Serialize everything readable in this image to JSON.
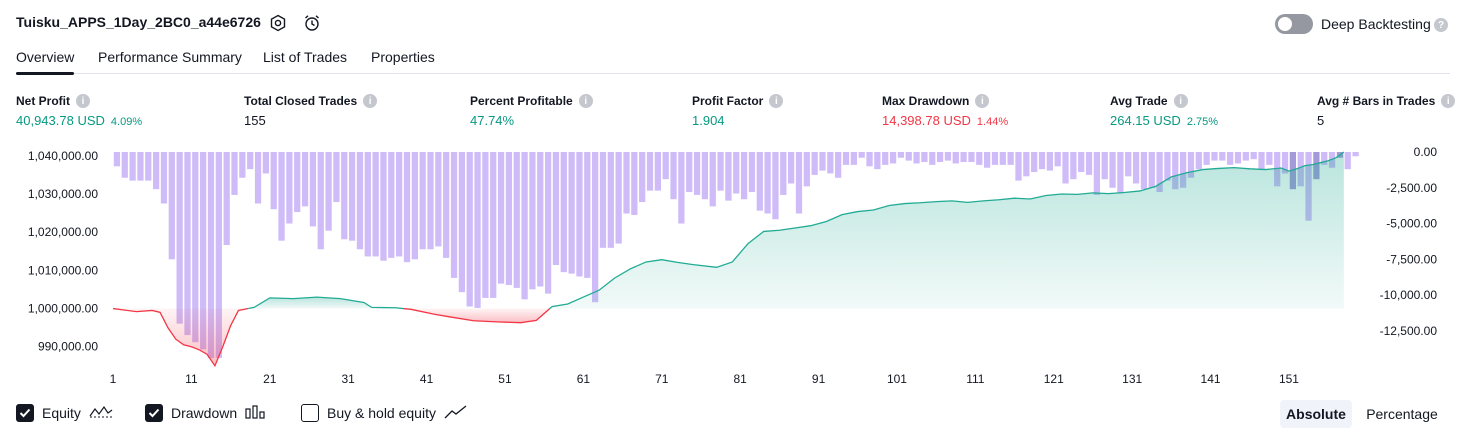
{
  "header": {
    "strategy_name": "Tuisku_APPS_1Day_2BC0_a44e6726",
    "deep_backtesting_label": "Deep Backtesting",
    "deep_backtesting_enabled": false
  },
  "tabs": [
    {
      "label": "Overview",
      "active": true
    },
    {
      "label": "Performance Summary",
      "active": false
    },
    {
      "label": "List of Trades",
      "active": false
    },
    {
      "label": "Properties",
      "active": false
    }
  ],
  "metrics": [
    {
      "label": "Net Profit",
      "value": "40,943.78 USD",
      "percent": "4.09%",
      "color": "#089981"
    },
    {
      "label": "Total Closed Trades",
      "value": "155",
      "percent": "",
      "color": "#131722"
    },
    {
      "label": "Percent Profitable",
      "value": "47.74%",
      "percent": "",
      "color": "#089981"
    },
    {
      "label": "Profit Factor",
      "value": "1.904",
      "percent": "",
      "color": "#089981"
    },
    {
      "label": "Max Drawdown",
      "value": "14,398.78 USD",
      "percent": "1.44%",
      "color": "#f23645"
    },
    {
      "label": "Avg Trade",
      "value": "264.15 USD",
      "percent": "2.75%",
      "color": "#089981"
    },
    {
      "label": "Avg # Bars in Trades",
      "value": "5",
      "percent": "",
      "color": "#131722"
    }
  ],
  "legend": {
    "equity": {
      "label": "Equity",
      "checked": true
    },
    "drawdown": {
      "label": "Drawdown",
      "checked": true
    },
    "buy_hold": {
      "label": "Buy & hold equity",
      "checked": false
    }
  },
  "view_mode": {
    "options": [
      "Absolute",
      "Percentage"
    ],
    "selected": "Absolute"
  },
  "colors": {
    "equity_line": "#22ab94",
    "loss_line": "#f23645",
    "drawdown_bar": "#c9b4f7",
    "drawdown_bar_dark": "#9a8fd6"
  },
  "chart_data": {
    "type": "area",
    "x_ticks": [
      "1",
      "11",
      "21",
      "31",
      "41",
      "51",
      "61",
      "71",
      "81",
      "91",
      "101",
      "111",
      "121",
      "131",
      "141",
      "151"
    ],
    "y_left": {
      "ticks": [
        "1,040,000.00",
        "1,030,000.00",
        "1,020,000.00",
        "1,010,000.00",
        "1,000,000.00",
        "990,000.00"
      ],
      "range": [
        986000,
        1041000
      ]
    },
    "y_right": {
      "ticks": [
        "0.00",
        "-2,500.00",
        "-5,000.00",
        "-7,500.00",
        "-10,000.00",
        "-12,500.00"
      ],
      "range": [
        -14400,
        0
      ]
    },
    "initial_capital": 1000000,
    "equity_x": [
      1,
      4,
      6,
      7,
      8,
      9,
      10,
      11,
      12,
      13,
      14,
      15,
      16,
      17,
      19,
      21,
      24,
      27,
      30,
      33,
      34,
      37,
      39,
      42,
      44,
      47,
      50,
      53,
      55,
      57,
      59,
      61,
      63,
      65,
      67,
      69,
      71,
      73,
      75,
      78,
      80,
      82,
      84,
      86,
      88,
      90,
      92,
      94,
      96,
      98,
      100,
      102,
      104,
      106,
      108,
      110,
      112,
      114,
      116,
      118,
      120,
      122,
      124,
      126,
      128,
      130,
      132,
      134,
      136,
      138,
      140,
      142,
      144,
      146,
      148,
      150,
      151,
      152,
      153,
      154,
      155,
      156,
      157,
      158
    ],
    "equity": [
      1000000,
      999200,
      999500,
      999000,
      995000,
      992000,
      990500,
      990000,
      989200,
      988000,
      985000,
      990000,
      995500,
      999500,
      1000300,
      1002800,
      1002600,
      1003000,
      1002600,
      1001600,
      1000300,
      1000200,
      999800,
      998500,
      997800,
      996800,
      996500,
      996300,
      996900,
      1000500,
      1001200,
      1003000,
      1004800,
      1008000,
      1010400,
      1012200,
      1012800,
      1012100,
      1011500,
      1010800,
      1012200,
      1017000,
      1020200,
      1020500,
      1021100,
      1021700,
      1022800,
      1024600,
      1025400,
      1025800,
      1027000,
      1027500,
      1027700,
      1028000,
      1028200,
      1027800,
      1028200,
      1028500,
      1028900,
      1028700,
      1029600,
      1030000,
      1029900,
      1030300,
      1030100,
      1030400,
      1030800,
      1032000,
      1034500,
      1035600,
      1036400,
      1036700,
      1036900,
      1036600,
      1036400,
      1036800,
      1036000,
      1036600,
      1037400,
      1037700,
      1038200,
      1038700,
      1039500,
      1041000
    ],
    "drawdown": [
      -1000,
      -1800,
      -2000,
      -2000,
      -2000,
      -2600,
      -3600,
      -7500,
      -12000,
      -12800,
      -13300,
      -13800,
      -14400,
      -14400,
      -6500,
      -3000,
      -1800,
      -1200,
      -3600,
      -1500,
      -4000,
      -6200,
      -5000,
      -4200,
      -3800,
      -5200,
      -6800,
      -5500,
      -3500,
      -6100,
      -6200,
      -6800,
      -7300,
      -7300,
      -7600,
      -7400,
      -7300,
      -7700,
      -7500,
      -6800,
      -6800,
      -6600,
      -7400,
      -8800,
      -9800,
      -10800,
      -10900,
      -10200,
      -10200,
      -9200,
      -9300,
      -9500,
      -10300,
      -9600,
      -9400,
      -9900,
      -7900,
      -8400,
      -8500,
      -8700,
      -8800,
      -10500,
      -6700,
      -6700,
      -6400,
      -4300,
      -4400,
      -3500,
      -2700,
      -2700,
      -1900,
      -3300,
      -5000,
      -2800,
      -3000,
      -3300,
      -3800,
      -2700,
      -3400,
      -2900,
      -3300,
      -2800,
      -4100,
      -4300,
      -4700,
      -3000,
      -2200,
      -4300,
      -2400,
      -1600,
      -1300,
      -1500,
      -1800,
      -900,
      -900,
      -400,
      -1000,
      -1200,
      -900,
      -800,
      -400,
      -600,
      -800,
      -700,
      -900,
      -700,
      -600,
      -800,
      -700,
      -700,
      -900,
      -1100,
      -900,
      -900,
      -900,
      -2000,
      -1700,
      -1400,
      -1200,
      -1300,
      -1000,
      -2200,
      -1900,
      -1400,
      -1600,
      -3000,
      -1900,
      -2500,
      -2900,
      -1700,
      -2200,
      -2600,
      -2500,
      -2800,
      -2000,
      -2600,
      -2500,
      -1800,
      -1200,
      -900,
      -600,
      -600,
      -900,
      -800,
      -600,
      -500,
      -1200,
      -900,
      -2400,
      -1500,
      -2600,
      -2400,
      -4800,
      -1900,
      -900,
      -1100,
      -400,
      -1200,
      -300
    ]
  }
}
